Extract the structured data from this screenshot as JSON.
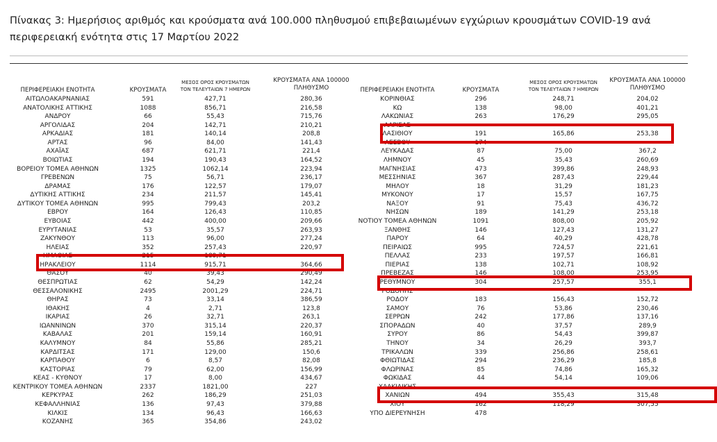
{
  "caption": "Πίνακας 3: Ημερήσιος αριθμός και κρούσματα ανά 100.000 πληθυσμού επιβεβαιωμένων εγχώριων κρουσμάτων COVID-19 ανά περιφερειακή ενότητα στις 17 Μαρτίου 2022",
  "table": {
    "headers": [
      "ΠΕΡΙΦΕΡΕΙΑΚΗ ΕΝΟΤΗΤΑ",
      "ΚΡΟΥΣΜΑΤΑ",
      "ΜΕΣΟΣ ΟΡΟΣ ΚΡΟΥΣΜΑΤΩΝ ΤΟΝ ΤΕΛΕΥΤΑΙΩΝ 7 ΗΜΕΡΩΝ",
      "ΚΡΟΥΣΜΑΤΑ ΑΝΑ 100000 ΠΛΗΘΥΣΜΟ"
    ],
    "left_rows": [
      [
        "ΑΙΤΩΛΟΑΚΑΡΝΑΝΙΑΣ",
        "591",
        "427,71",
        "280,36"
      ],
      [
        "ΑΝΑΤΟΛΙΚΗΣ ΑΤΤΙΚΗΣ",
        "1088",
        "856,71",
        "216,58"
      ],
      [
        "ΑΝΔΡΟΥ",
        "66",
        "55,43",
        "715,76"
      ],
      [
        "ΑΡΓΟΛΙΔΑΣ",
        "204",
        "142,71",
        "210,21"
      ],
      [
        "ΑΡΚΑΔΙΑΣ",
        "181",
        "140,14",
        "208,8"
      ],
      [
        "ΑΡΤΑΣ",
        "96",
        "84,00",
        "141,43"
      ],
      [
        "ΑΧΑΪΑΣ",
        "687",
        "621,71",
        "221,4"
      ],
      [
        "ΒΟΙΩΤΙΑΣ",
        "194",
        "190,43",
        "164,52"
      ],
      [
        "ΒΟΡΕΙΟΥ ΤΟΜΕΑ ΑΘΗΝΩΝ",
        "1325",
        "1062,14",
        "223,94"
      ],
      [
        "ΓΡΕΒΕΝΩΝ",
        "75",
        "56,71",
        "236,17"
      ],
      [
        "ΔΡΑΜΑΣ",
        "176",
        "122,57",
        "179,07"
      ],
      [
        "ΔΥΤΙΚΗΣ ΑΤΤΙΚΗΣ",
        "234",
        "211,57",
        "145,41"
      ],
      [
        "ΔΥΤΙΚΟΥ ΤΟΜΕΑ ΑΘΗΝΩΝ",
        "995",
        "799,43",
        "203,2"
      ],
      [
        "ΕΒΡΟΥ",
        "164",
        "126,43",
        "110,85"
      ],
      [
        "ΕΥΒΟΙΑΣ",
        "442",
        "400,00",
        "209,66"
      ],
      [
        "ΕΥΡΥΤΑΝΙΑΣ",
        "53",
        "35,57",
        "263,93"
      ],
      [
        "ΖΑΚΥΝΘΟΥ",
        "113",
        "96,00",
        "277,24"
      ],
      [
        "ΗΛΕΙΑΣ",
        "352",
        "257,43",
        "220,97"
      ],
      [
        "ΗΜΑΘΙΑΣ",
        "215",
        "189,71"
      ],
      [
        "ΗΡΑΚΛΕΙΟΥ",
        "1114",
        "915,71",
        "364,66"
      ],
      [
        "ΘΑΣΟΥ",
        "40",
        "39,43",
        "290,49"
      ],
      [
        "ΘΕΣΠΡΩΤΙΑΣ",
        "62",
        "54,29",
        "142,24"
      ],
      [
        "ΘΕΣΣΑΛΟΝΙΚΗΣ",
        "2495",
        "2001,29",
        "224,71"
      ],
      [
        "ΘΗΡΑΣ",
        "73",
        "33,14",
        "386,59"
      ],
      [
        "ΙΘΑΚΗΣ",
        "4",
        "2,71",
        "123,8"
      ],
      [
        "ΙΚΑΡΙΑΣ",
        "26",
        "32,71",
        "263,1"
      ],
      [
        "ΙΩΑΝΝΙΝΩΝ",
        "370",
        "315,14",
        "220,37"
      ],
      [
        "ΚΑΒΑΛΑΣ",
        "201",
        "159,14",
        "160,91"
      ],
      [
        "ΚΑΛΥΜΝΟΥ",
        "84",
        "55,86",
        "285,21"
      ],
      [
        "ΚΑΡΔΙΤΣΑΣ",
        "171",
        "129,00",
        "150,6"
      ],
      [
        "ΚΑΡΠΑΘΟΥ",
        "6",
        "8,57",
        "82,08"
      ],
      [
        "ΚΑΣΤΟΡΙΑΣ",
        "79",
        "62,00",
        "156,99"
      ],
      [
        "ΚΕΑΣ - ΚΥΘΝΟΥ",
        "17",
        "8,00",
        "434,67"
      ],
      [
        "ΚΕΝΤΡΙΚΟΥ ΤΟΜΕΑ ΑΘΗΝΩΝ",
        "2337",
        "1821,00",
        "227"
      ],
      [
        "ΚΕΡΚΥΡΑΣ",
        "262",
        "186,29",
        "251,03"
      ],
      [
        "ΚΕΦΑΛΛΗΝΙΑΣ",
        "136",
        "97,43",
        "379,88"
      ],
      [
        "ΚΙΛΚΙΣ",
        "134",
        "96,43",
        "166,63"
      ],
      [
        "ΚΟΖΑΝΗΣ",
        "365",
        "354,86",
        "243,02"
      ]
    ],
    "right_rows": [
      [
        "ΚΟΡΙΝΘΙΑΣ",
        "296",
        "248,71",
        "204,02"
      ],
      [
        "ΚΩ",
        "138",
        "98,00",
        "401,21"
      ],
      [
        "ΛΑΚΩΝΙΑΣ",
        "263",
        "176,29",
        "295,05"
      ],
      [
        "ΛΑΡΙΣΑΣ"
      ],
      [
        "ΛΑΣΙΘΙΟΥ",
        "191",
        "165,86",
        "253,38"
      ],
      [
        "ΛΕΣΒΟΥ",
        "174"
      ],
      [
        "ΛΕΥΚΑΔΑΣ",
        "87",
        "75,00",
        "367,2"
      ],
      [
        "ΛΗΜΝΟΥ",
        "45",
        "35,43",
        "260,69"
      ],
      [
        "ΜΑΓΝΗΣΙΑΣ",
        "473",
        "399,86",
        "248,93"
      ],
      [
        "ΜΕΣΣΗΝΙΑΣ",
        "367",
        "287,43",
        "229,44"
      ],
      [
        "ΜΗΛΟΥ",
        "18",
        "31,29",
        "181,23"
      ],
      [
        "ΜΥΚΟΝΟΥ",
        "17",
        "15,57",
        "167,75"
      ],
      [
        "ΝΑΞΟΥ",
        "91",
        "75,43",
        "436,72"
      ],
      [
        "ΝΗΣΩΝ",
        "189",
        "141,29",
        "253,18"
      ],
      [
        "ΝΟΤΙΟΥ ΤΟΜΕΑ ΑΘΗΝΩΝ",
        "1091",
        "808,00",
        "205,92"
      ],
      [
        "ΞΑΝΘΗΣ",
        "146",
        "127,43",
        "131,27"
      ],
      [
        "ΠΑΡΟΥ",
        "64",
        "40,29",
        "428,78"
      ],
      [
        "ΠΕΙΡΑΙΩΣ",
        "995",
        "724,57",
        "221,61"
      ],
      [
        "ΠΕΛΛΑΣ",
        "233",
        "197,57",
        "166,81"
      ],
      [
        "ΠΙΕΡΙΑΣ",
        "138",
        "102,71",
        "108,92"
      ],
      [
        "ΠΡΕΒΕΖΑΣ",
        "146",
        "108,00",
        "253,95"
      ],
      [
        "ΡΕΘΥΜΝΟΥ",
        "304",
        "257,57",
        "355,1"
      ],
      [
        "ΡΟΔΟΠΗΣ"
      ],
      [
        "ΡΟΔΟΥ",
        "183",
        "156,43",
        "152,72"
      ],
      [
        "ΣΑΜΟΥ",
        "76",
        "53,86",
        "230,46"
      ],
      [
        "ΣΕΡΡΩΝ",
        "242",
        "177,86",
        "137,16"
      ],
      [
        "ΣΠΟΡΑΔΩΝ",
        "40",
        "37,57",
        "289,9"
      ],
      [
        "ΣΥΡΟΥ",
        "86",
        "54,43",
        "399,87"
      ],
      [
        "ΤΗΝΟΥ",
        "34",
        "26,29",
        "393,7"
      ],
      [
        "ΤΡΙΚΑΛΩΝ",
        "339",
        "256,86",
        "258,61"
      ],
      [
        "ΦΘΙΩΤΙΔΑΣ",
        "294",
        "236,29",
        "185,8"
      ],
      [
        "ΦΛΩΡΙΝΑΣ",
        "85",
        "74,86",
        "165,32"
      ],
      [
        "ΦΩΚΙΔΑΣ",
        "44",
        "54,14",
        "109,06"
      ],
      [
        "ΧΑΛΚΙΔΙΚΗΣ"
      ],
      [
        "ΧΑΝΙΩΝ",
        "494",
        "355,43",
        "315,48"
      ],
      [
        "ΧΙΟΥ",
        "162",
        "118,29",
        "307,55"
      ],
      [
        "ΥΠΟ ΔΙΕΡΕΥΝΗΣΗ",
        "478"
      ]
    ]
  }
}
